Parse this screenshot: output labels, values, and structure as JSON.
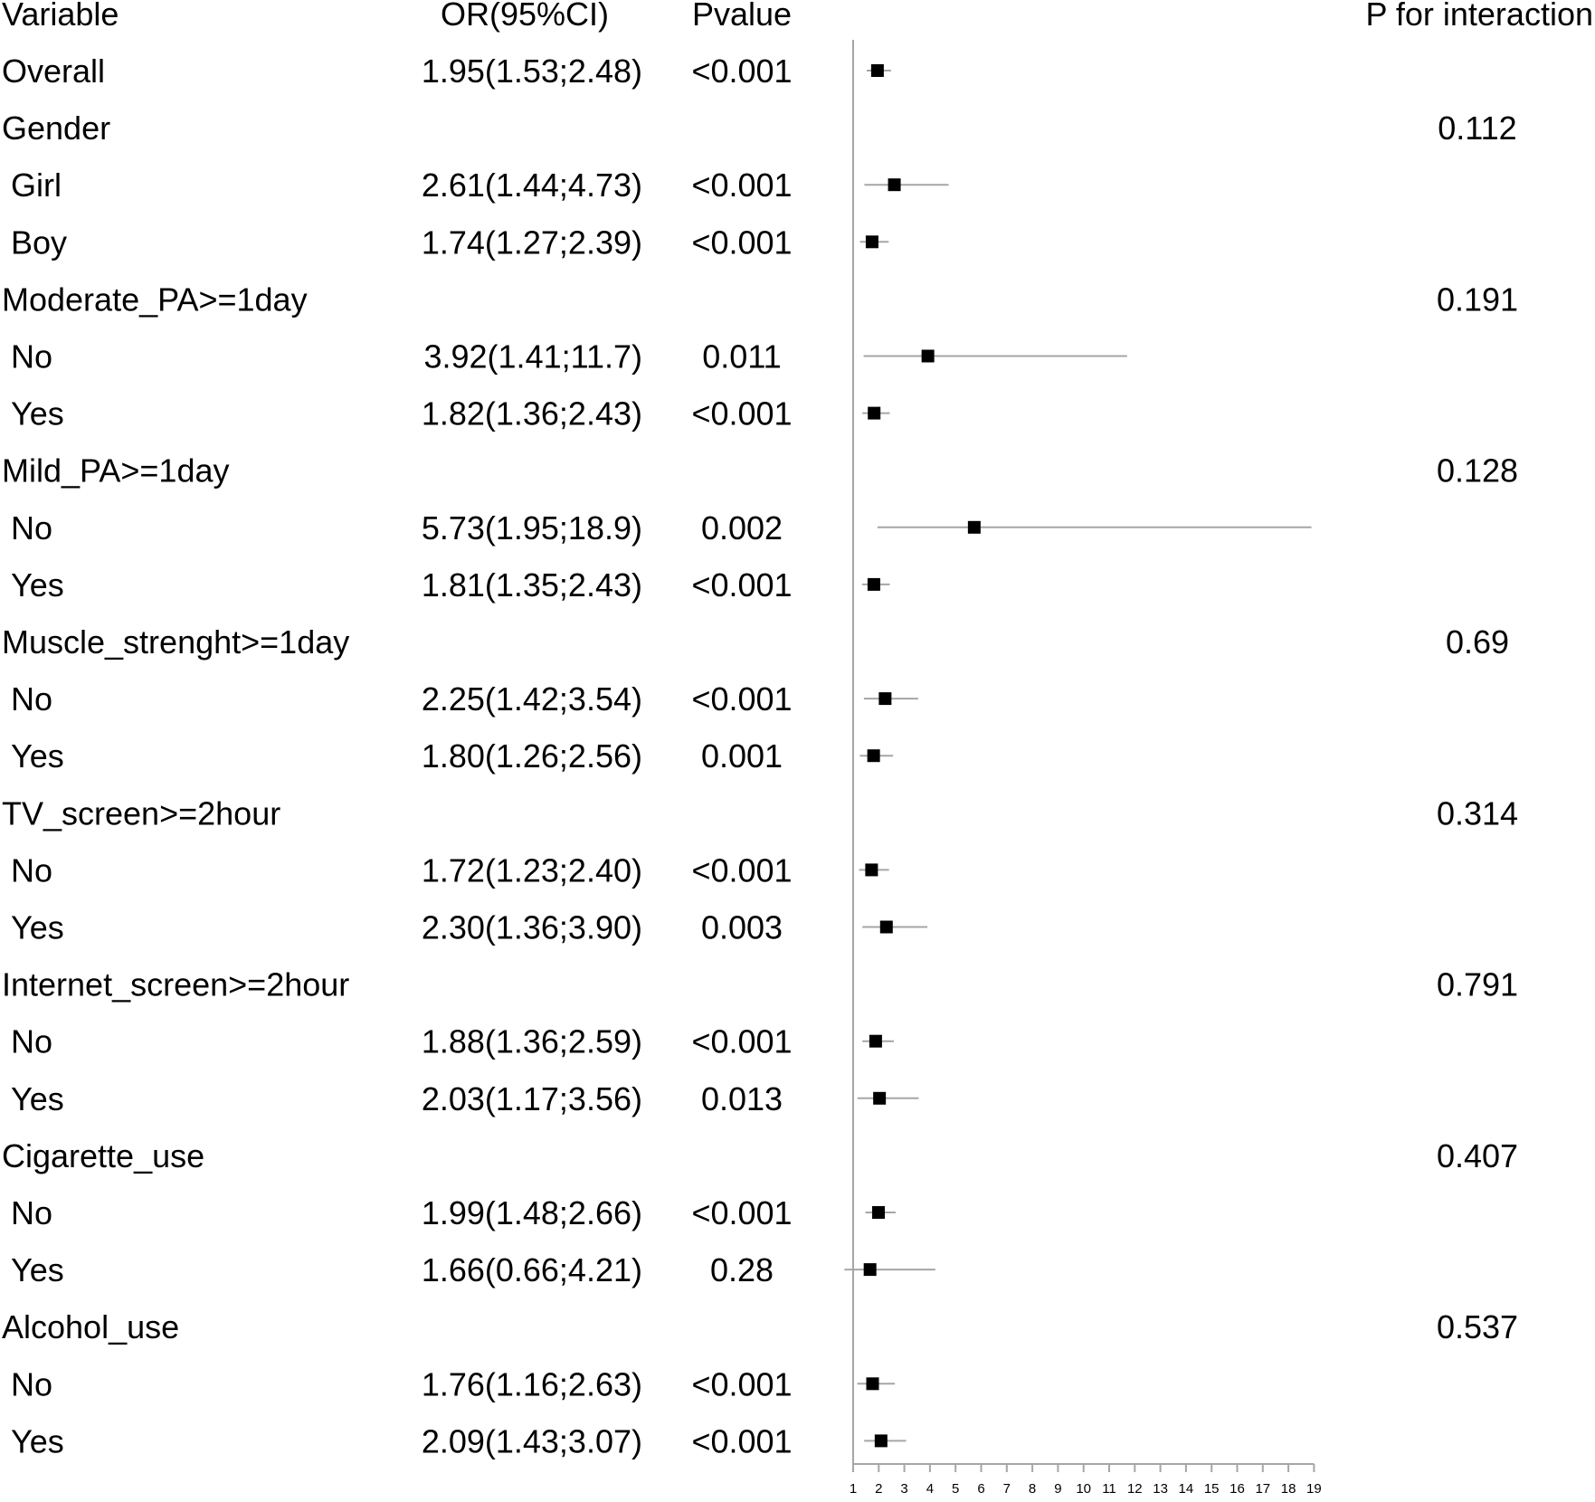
{
  "chart_data": {
    "type": "forest",
    "headers": {
      "variable": "Variable",
      "or_ci": "OR(95%CI)",
      "pvalue": "Pvalue",
      "p_interaction": "P for interaction"
    },
    "xlim": [
      1,
      19
    ],
    "x_ticks": [
      1,
      2,
      3,
      4,
      5,
      6,
      7,
      8,
      9,
      10,
      11,
      12,
      13,
      14,
      15,
      16,
      17,
      18,
      19
    ],
    "reference_line": 1,
    "colors": {
      "marker": "#000000",
      "ci_line": "#a6a6a6",
      "axis": "#a6a6a6",
      "text": "#000000"
    },
    "rows": [
      {
        "label": "Overall",
        "or_ci": "1.95(1.53;2.48)",
        "p": "<0.001",
        "p_int": "",
        "or": 1.95,
        "lo": 1.53,
        "hi": 2.48,
        "indent": false
      },
      {
        "label": "Gender",
        "or_ci": "",
        "p": "",
        "p_int": "0.112",
        "indent": false
      },
      {
        "label": "Girl",
        "or_ci": "2.61(1.44;4.73)",
        "p": "<0.001",
        "p_int": "",
        "or": 2.61,
        "lo": 1.44,
        "hi": 4.73,
        "indent": true
      },
      {
        "label": "Boy",
        "or_ci": "1.74(1.27;2.39)",
        "p": "<0.001",
        "p_int": "",
        "or": 1.74,
        "lo": 1.27,
        "hi": 2.39,
        "indent": true
      },
      {
        "label": "Moderate_PA>=1day",
        "or_ci": "",
        "p": "",
        "p_int": "0.191",
        "indent": false
      },
      {
        "label": "No",
        "or_ci": "3.92(1.41;11.7)",
        "p": "0.011",
        "p_int": "",
        "or": 3.92,
        "lo": 1.41,
        "hi": 11.7,
        "indent": true
      },
      {
        "label": "Yes",
        "or_ci": "1.82(1.36;2.43)",
        "p": "<0.001",
        "p_int": "",
        "or": 1.82,
        "lo": 1.36,
        "hi": 2.43,
        "indent": true
      },
      {
        "label": "Mild_PA>=1day",
        "or_ci": "",
        "p": "",
        "p_int": "0.128",
        "indent": false
      },
      {
        "label": "No",
        "or_ci": "5.73(1.95;18.9)",
        "p": "0.002",
        "p_int": "",
        "or": 5.73,
        "lo": 1.95,
        "hi": 18.9,
        "indent": true
      },
      {
        "label": "Yes",
        "or_ci": "1.81(1.35;2.43)",
        "p": "<0.001",
        "p_int": "",
        "or": 1.81,
        "lo": 1.35,
        "hi": 2.43,
        "indent": true
      },
      {
        "label": "Muscle_strenght>=1day",
        "or_ci": "",
        "p": "",
        "p_int": "0.69",
        "indent": false
      },
      {
        "label": "No",
        "or_ci": "2.25(1.42;3.54)",
        "p": "<0.001",
        "p_int": "",
        "or": 2.25,
        "lo": 1.42,
        "hi": 3.54,
        "indent": true
      },
      {
        "label": "Yes",
        "or_ci": "1.80(1.26;2.56)",
        "p": "0.001",
        "p_int": "",
        "or": 1.8,
        "lo": 1.26,
        "hi": 2.56,
        "indent": true
      },
      {
        "label": "TV_screen>=2hour",
        "or_ci": "",
        "p": "",
        "p_int": "0.314",
        "indent": false
      },
      {
        "label": "No",
        "or_ci": "1.72(1.23;2.40)",
        "p": "<0.001",
        "p_int": "",
        "or": 1.72,
        "lo": 1.23,
        "hi": 2.4,
        "indent": true
      },
      {
        "label": "Yes",
        "or_ci": "2.30(1.36;3.90)",
        "p": "0.003",
        "p_int": "",
        "or": 2.3,
        "lo": 1.36,
        "hi": 3.9,
        "indent": true
      },
      {
        "label": "Internet_screen>=2hour",
        "or_ci": "",
        "p": "",
        "p_int": "0.791",
        "indent": false
      },
      {
        "label": "No",
        "or_ci": "1.88(1.36;2.59)",
        "p": "<0.001",
        "p_int": "",
        "or": 1.88,
        "lo": 1.36,
        "hi": 2.59,
        "indent": true
      },
      {
        "label": "Yes",
        "or_ci": "2.03(1.17;3.56)",
        "p": "0.013",
        "p_int": "",
        "or": 2.03,
        "lo": 1.17,
        "hi": 3.56,
        "indent": true
      },
      {
        "label": "Cigarette_use",
        "or_ci": "",
        "p": "",
        "p_int": "0.407",
        "indent": false
      },
      {
        "label": "No",
        "or_ci": "1.99(1.48;2.66)",
        "p": "<0.001",
        "p_int": "",
        "or": 1.99,
        "lo": 1.48,
        "hi": 2.66,
        "indent": true
      },
      {
        "label": "Yes",
        "or_ci": "1.66(0.66;4.21)",
        "p": "0.28",
        "p_int": "",
        "or": 1.66,
        "lo": 0.66,
        "hi": 4.21,
        "indent": true
      },
      {
        "label": "Alcohol_use",
        "or_ci": "",
        "p": "",
        "p_int": "0.537",
        "indent": false
      },
      {
        "label": "No",
        "or_ci": "1.76(1.16;2.63)",
        "p": "<0.001",
        "p_int": "",
        "or": 1.76,
        "lo": 1.16,
        "hi": 2.63,
        "indent": true
      },
      {
        "label": "Yes",
        "or_ci": "2.09(1.43;3.07)",
        "p": "<0.001",
        "p_int": "",
        "or": 2.09,
        "lo": 1.43,
        "hi": 3.07,
        "indent": true
      }
    ]
  }
}
